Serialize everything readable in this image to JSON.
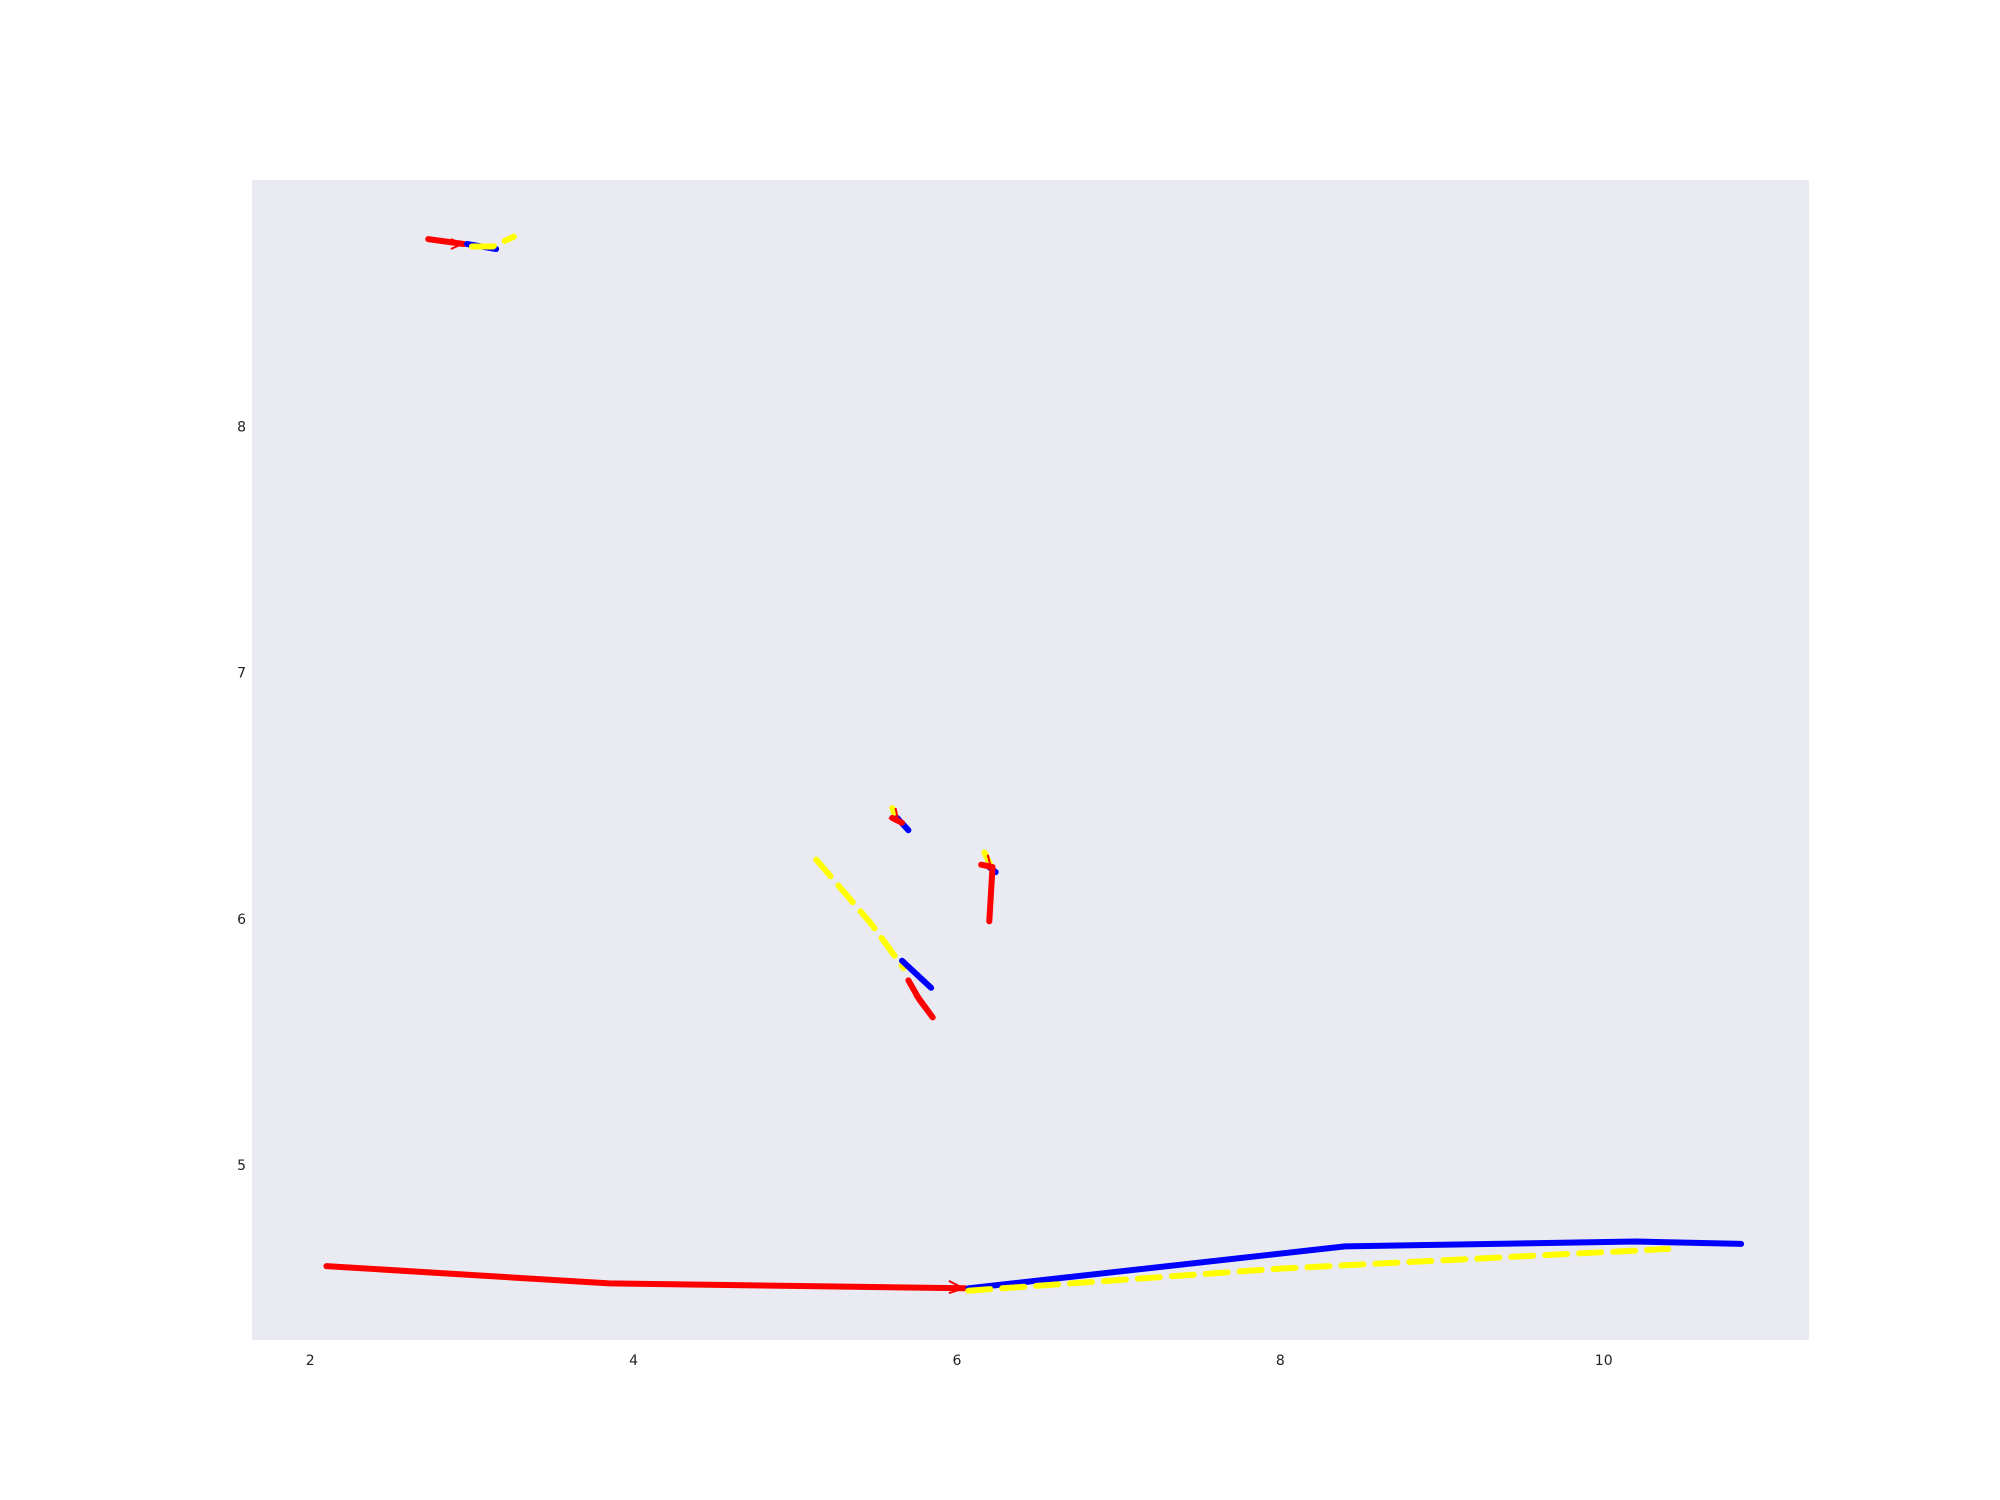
{
  "chart_data": {
    "type": "line",
    "title": "",
    "xlabel": "",
    "ylabel": "",
    "xlim": [
      1.64,
      11.27
    ],
    "ylim": [
      4.29,
      9.0
    ],
    "x_ticks": [
      2,
      4,
      6,
      8,
      10
    ],
    "y_ticks": [
      5,
      6,
      7,
      8
    ],
    "grid": false,
    "background": "#eaeaf2",
    "colors": {
      "red": "#ff0000",
      "blue": "#0000ff",
      "yellow": "#ffff00"
    },
    "groups": [
      {
        "name": "",
        "series": [
          {
            "color": "red",
            "dash": false,
            "points": [
              [
                2.1,
                4.59
              ],
              [
                3.85,
                4.52
              ],
              [
                6.05,
                4.5
              ]
            ]
          },
          {
            "color": "blue",
            "dash": false,
            "points": [
              [
                6.07,
                4.5
              ],
              [
                8.4,
                4.67
              ],
              [
                10.2,
                4.69
              ],
              [
                10.85,
                4.68
              ]
            ]
          },
          {
            "color": "yellow",
            "dash": true,
            "points": [
              [
                6.07,
                4.49
              ],
              [
                8.0,
                4.58
              ],
              [
                10.4,
                4.66
              ]
            ]
          }
        ],
        "arrows": [
          {
            "color": "red",
            "points": [
              [
                5.95,
                4.53
              ],
              [
                6.04,
                4.5
              ],
              [
                5.95,
                4.48
              ]
            ]
          }
        ]
      },
      {
        "name": "",
        "series": [
          {
            "color": "red",
            "dash": false,
            "points": [
              [
                2.73,
                8.76
              ],
              [
                2.95,
                8.74
              ]
            ]
          },
          {
            "color": "blue",
            "dash": false,
            "points": [
              [
                2.97,
                8.74
              ],
              [
                3.15,
                8.72
              ]
            ]
          },
          {
            "color": "yellow",
            "dash": true,
            "points": [
              [
                3.0,
                8.73
              ],
              [
                3.13,
                8.73
              ],
              [
                3.26,
                8.77
              ]
            ]
          }
        ],
        "arrows": [
          {
            "color": "red",
            "points": [
              [
                2.87,
                8.76
              ],
              [
                2.94,
                8.74
              ],
              [
                2.87,
                8.72
              ]
            ]
          }
        ]
      },
      {
        "name": "",
        "series": [
          {
            "color": "yellow",
            "dash": true,
            "points": [
              [
                5.13,
                6.24
              ],
              [
                5.47,
                5.98
              ],
              [
                5.67,
                5.8
              ]
            ]
          },
          {
            "color": "blue",
            "dash": false,
            "points": [
              [
                5.66,
                5.83
              ],
              [
                5.84,
                5.72
              ]
            ]
          },
          {
            "color": "red",
            "dash": false,
            "points": [
              [
                5.7,
                5.75
              ],
              [
                5.77,
                5.67
              ],
              [
                5.85,
                5.6
              ],
              [
                5.75,
                5.69
              ]
            ]
          }
        ],
        "arrows": []
      },
      {
        "name": "",
        "series": [
          {
            "color": "yellow",
            "dash": true,
            "points": [
              [
                5.6,
                6.45
              ],
              [
                5.63,
                6.4
              ]
            ]
          },
          {
            "color": "blue",
            "dash": false,
            "points": [
              [
                5.63,
                6.41
              ],
              [
                5.7,
                6.36
              ]
            ]
          },
          {
            "color": "red",
            "dash": false,
            "points": [
              [
                5.6,
                6.41
              ],
              [
                5.66,
                6.39
              ]
            ]
          }
        ],
        "arrows": [
          {
            "color": "red",
            "points": [
              [
                5.62,
                6.45
              ],
              [
                5.64,
                6.39
              ],
              [
                5.58,
                6.41
              ]
            ]
          }
        ]
      },
      {
        "name": "",
        "series": [
          {
            "color": "yellow",
            "dash": true,
            "points": [
              [
                6.17,
                6.27
              ],
              [
                6.22,
                6.2
              ]
            ]
          },
          {
            "color": "blue",
            "dash": false,
            "points": [
              [
                6.2,
                6.21
              ],
              [
                6.24,
                6.19
              ]
            ]
          },
          {
            "color": "red",
            "dash": false,
            "points": [
              [
                6.2,
                5.99
              ],
              [
                6.22,
                6.21
              ],
              [
                6.15,
                6.22
              ]
            ]
          }
        ],
        "arrows": [
          {
            "color": "red",
            "points": [
              [
                6.19,
                6.26
              ],
              [
                6.21,
                6.21
              ],
              [
                6.15,
                6.22
              ]
            ]
          }
        ]
      }
    ]
  }
}
